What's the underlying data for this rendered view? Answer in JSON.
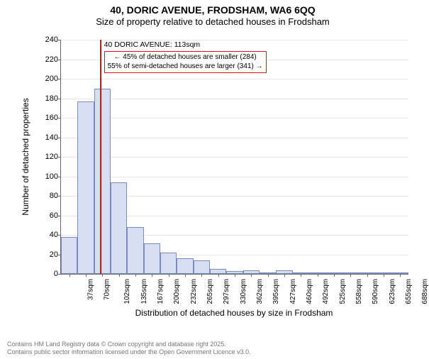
{
  "title": "40, DORIC AVENUE, FRODSHAM, WA6 6QQ",
  "subtitle": "Size of property relative to detached houses in Frodsham",
  "chart": {
    "type": "histogram",
    "categories": [
      "37sqm",
      "70sqm",
      "102sqm",
      "135sqm",
      "167sqm",
      "200sqm",
      "232sqm",
      "265sqm",
      "297sqm",
      "330sqm",
      "362sqm",
      "395sqm",
      "427sqm",
      "460sqm",
      "492sqm",
      "525sqm",
      "558sqm",
      "590sqm",
      "623sqm",
      "655sqm",
      "688sqm"
    ],
    "values": [
      38,
      177,
      190,
      94,
      48,
      31,
      22,
      16,
      14,
      5,
      3,
      4,
      1,
      4,
      1,
      1,
      1,
      0,
      1,
      1,
      1
    ],
    "ylim": [
      0,
      240
    ],
    "ytick_step": 20,
    "bar_fill": "#d7ddf2",
    "bar_border": "#7a8bbd",
    "grid_color": "#e6e6e6",
    "background_color": "#ffffff",
    "axis_color": "#666666",
    "reference_line_color": "#dd1111",
    "reference_line_category_index": 2,
    "annotation": {
      "title": "40 DORIC AVENUE: 113sqm",
      "line1": "← 45% of detached houses are smaller (284)",
      "line2": "55% of semi-detached houses are larger (341) →"
    },
    "xlabel": "Distribution of detached houses by size in Frodsham",
    "ylabel": "Number of detached properties",
    "tick_fontsize": 11,
    "label_fontsize": 12,
    "title_fontsize": 14
  },
  "footer": {
    "line1": "Contains HM Land Registry data © Crown copyright and database right 2025.",
    "line2": "Contains public sector information licensed under the Open Government Licence v3.0."
  }
}
